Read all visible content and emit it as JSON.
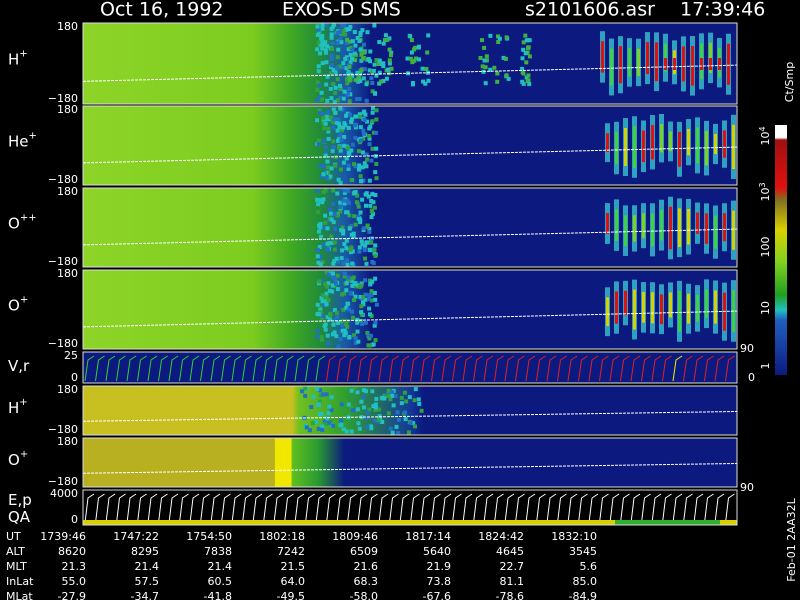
{
  "header": {
    "date": "Oct 16, 1992",
    "instrument": "EXOS-D SMS",
    "file": "s2101606.asr",
    "time": "17:39:46"
  },
  "panels": [
    {
      "label": "H",
      "charge": "+",
      "ticks": [
        "180",
        "−180"
      ]
    },
    {
      "label": "He",
      "charge": "+",
      "ticks": [
        "180",
        "−180"
      ]
    },
    {
      "label": "O",
      "charge": "++",
      "ticks": [
        "180",
        "−180"
      ]
    },
    {
      "label": "O",
      "charge": "+",
      "ticks": [
        "180",
        "−180"
      ]
    },
    {
      "label": "V,r",
      "ticks": [
        "25",
        "0"
      ]
    },
    {
      "label": "H",
      "charge": "+",
      "ticks": [
        "180",
        "−180"
      ]
    },
    {
      "label": "O",
      "charge": "+",
      "ticks": [
        "180",
        "−180"
      ]
    },
    {
      "label": "E,p",
      "label2": "QA",
      "ticks": [
        "4000",
        "0"
      ]
    }
  ],
  "colorbar": {
    "unit": "Ct/Smp",
    "labels": [
      {
        "base": "10",
        "exp": "4"
      },
      {
        "base": "10",
        "exp": "3"
      },
      "100",
      "10",
      "1"
    ]
  },
  "right_labels": [
    "90",
    "0",
    "90"
  ],
  "footer": {
    "rows": [
      {
        "label": "UT",
        "values": [
          "1739:46",
          "1747:22",
          "1754:50",
          "1802:18",
          "1809:46",
          "1817:14",
          "1824:42",
          "1832:10"
        ]
      },
      {
        "label": "ALT",
        "values": [
          "8620",
          "8295",
          "7838",
          "7242",
          "6509",
          "5640",
          "4645",
          "3545"
        ]
      },
      {
        "label": "MLT",
        "values": [
          "21.3",
          "21.4",
          "21.4",
          "21.5",
          "21.6",
          "21.9",
          "22.7",
          "5.6"
        ]
      },
      {
        "label": "InLat",
        "values": [
          "55.0",
          "57.5",
          "60.5",
          "64.0",
          "68.3",
          "73.8",
          "81.1",
          "85.0"
        ]
      },
      {
        "label": "MLat",
        "values": [
          "-27.9",
          "-34.7",
          "-41.8",
          "-49.5",
          "-58.0",
          "-67.6",
          "-78.6",
          "-84.9"
        ]
      }
    ]
  },
  "side_note": "Feb-01  2AA32L"
}
